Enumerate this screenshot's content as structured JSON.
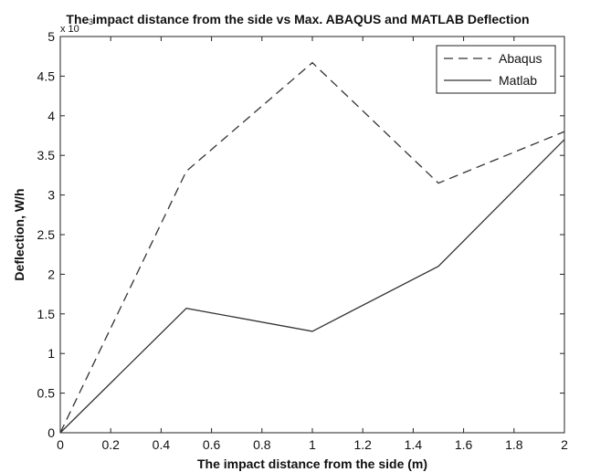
{
  "chart_data": {
    "type": "line",
    "title": "The impact distance from the side vs Max. ABAQUS and MATLAB Deflection",
    "xlabel": "The impact distance from the side (m)",
    "ylabel": "Deflection, W/h",
    "y_exponent_label": "x 10",
    "y_exponent_power": "-3",
    "xlim": [
      0,
      2
    ],
    "ylim": [
      0,
      5
    ],
    "xticks": [
      "0",
      "0.2",
      "0.4",
      "0.6",
      "0.8",
      "1",
      "1.2",
      "1.4",
      "1.6",
      "1.8",
      "2"
    ],
    "yticks": [
      "0",
      "0.5",
      "1",
      "1.5",
      "2",
      "2.5",
      "3",
      "3.5",
      "4",
      "4.5",
      "5"
    ],
    "x": [
      0,
      0.5,
      1,
      1.5,
      2
    ],
    "series": [
      {
        "name": "Abaqus",
        "style": "dashed",
        "color": "#333333",
        "values": [
          0,
          3.3,
          4.67,
          3.15,
          3.8
        ]
      },
      {
        "name": "Matlab",
        "style": "solid",
        "color": "#333333",
        "values": [
          0,
          1.57,
          1.28,
          2.1,
          3.7
        ]
      }
    ],
    "grid": false,
    "legend_position": "top-right"
  }
}
